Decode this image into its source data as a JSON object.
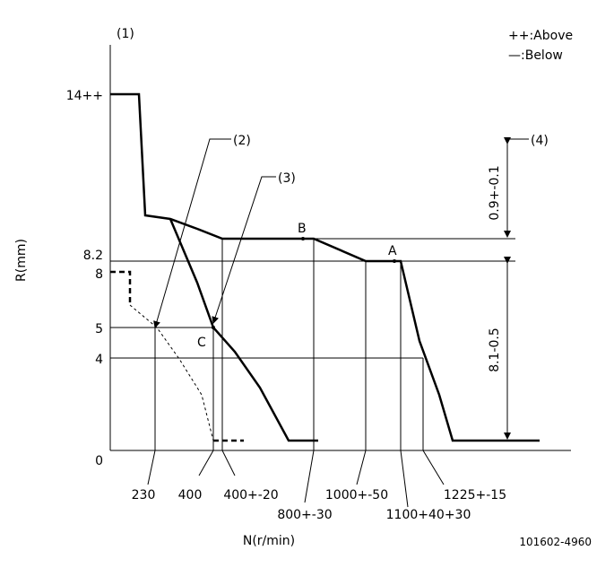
{
  "diagram": {
    "corner_label": "(1)",
    "legend": [
      "++:Above",
      "—:Below"
    ],
    "y_axis": {
      "title": "R(mm)",
      "labels": [
        "14++",
        "8.2",
        "8",
        "5",
        "4",
        "0"
      ]
    },
    "x_axis": {
      "title": "N(r/min)",
      "labels": [
        "230",
        "400",
        "400+-20",
        "800+-30",
        "1000+-50",
        "1100+40+30",
        "1225+-15"
      ]
    },
    "callouts": [
      "(2)",
      "(3)",
      "(4)"
    ],
    "points": [
      "A",
      "B",
      "C"
    ],
    "dimensions": [
      "0.9+-0.1",
      "8.1-0.5"
    ],
    "drawing_number": "101602-4960"
  }
}
